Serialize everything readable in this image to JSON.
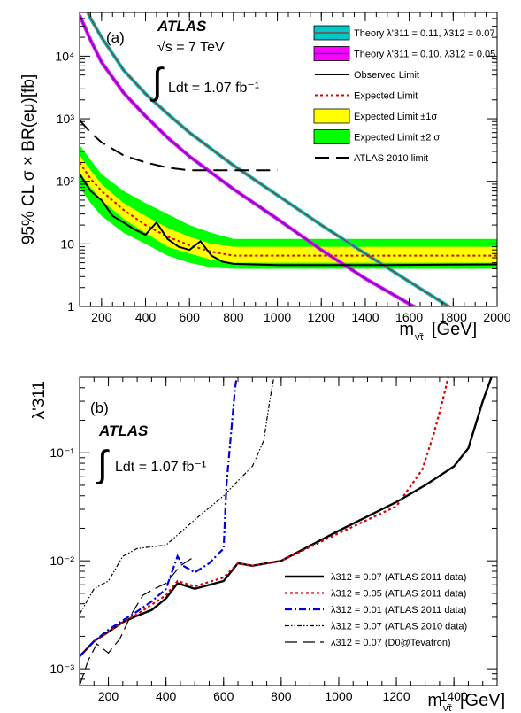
{
  "chart_data": [
    {
      "panel_label": "(a)",
      "type": "line",
      "experiment": "ATLAS",
      "energy_label": "√s = 7 TeV",
      "lumi_label": "Ldt = 1.07 fb⁻¹",
      "ylabel": "95% CL σ × BR(eμ)[fb]",
      "xlabel": "m",
      "xlabel_sub": "ν̃τ",
      "xlabel_unit": "[GeV]",
      "xlim": [
        100,
        2000
      ],
      "ylim": [
        1,
        50000
      ],
      "yscale": "log",
      "x_ticks": [
        200,
        400,
        600,
        800,
        1000,
        1200,
        1400,
        1600,
        1800,
        2000
      ],
      "y_ticks": [
        {
          "value": 1,
          "label": "1"
        },
        {
          "value": 10,
          "label": "10"
        },
        {
          "value": 100,
          "label": "10²"
        },
        {
          "value": 1000,
          "label": "10³"
        },
        {
          "value": 10000,
          "label": "10⁴"
        }
      ],
      "legend_position": "top-right",
      "series": [
        {
          "name": "Expected Limit ±2 σ",
          "kind": "band",
          "color": "#00ff00",
          "x": [
            100,
            150,
            200,
            300,
            400,
            500,
            600,
            700,
            800,
            1000,
            1200,
            1500,
            2000
          ],
          "low": [
            80,
            45,
            28,
            15,
            10,
            6.5,
            5,
            4.2,
            4,
            4,
            4,
            4,
            4
          ],
          "high": [
            380,
            220,
            130,
            70,
            45,
            30,
            20,
            15,
            12,
            12,
            12,
            12,
            12
          ]
        },
        {
          "name": "Expected Limit ±1σ",
          "kind": "band",
          "color": "#ffff00",
          "x": [
            100,
            150,
            200,
            300,
            400,
            500,
            600,
            700,
            800,
            1000,
            1200,
            1500,
            2000
          ],
          "low": [
            140,
            80,
            50,
            25,
            15,
            9,
            7,
            5.6,
            5,
            5,
            5,
            5,
            5
          ],
          "high": [
            260,
            150,
            90,
            45,
            28,
            18,
            13,
            10,
            9,
            9,
            9,
            9,
            9
          ]
        },
        {
          "name": "Theory λ'311 = 0.11, λ312 = 0.07",
          "kind": "line",
          "color": "#7b4a3a",
          "outline": "#00c8c8",
          "x": [
            100,
            150,
            200,
            300,
            400,
            500,
            600,
            800,
            1000,
            1200,
            1400,
            1600,
            1800
          ],
          "y": [
            100000,
            40000,
            20000,
            6000,
            2500,
            1200,
            600,
            180,
            60,
            20,
            7,
            2.5,
            0.9
          ]
        },
        {
          "name": "Theory λ'311 = 0.10, λ312 = 0.05",
          "kind": "line",
          "color": "#5a1fb0",
          "outline": "#ff00ff",
          "x": [
            100,
            150,
            200,
            300,
            400,
            500,
            600,
            800,
            1000,
            1200,
            1400,
            1600,
            1700
          ],
          "y": [
            45000,
            18000,
            8000,
            2600,
            1100,
            500,
            250,
            75,
            25,
            8,
            2.8,
            1.1,
            0.7
          ]
        },
        {
          "name": "ATLAS 2010 limit",
          "kind": "line",
          "color": "#000000",
          "dash": "16 8",
          "x": [
            100,
            150,
            200,
            300,
            400,
            500,
            600,
            700,
            800,
            1000
          ],
          "y": [
            950,
            600,
            420,
            260,
            200,
            165,
            150,
            150,
            150,
            150
          ]
        },
        {
          "name": "Expected Limit",
          "kind": "line",
          "color": "#dd0000",
          "dash": "3 3",
          "x": [
            100,
            150,
            200,
            300,
            400,
            500,
            600,
            700,
            800,
            1000,
            1200,
            1500,
            2000
          ],
          "y": [
            200,
            110,
            70,
            35,
            20,
            13,
            9.5,
            7.5,
            6.5,
            6.5,
            6.5,
            6.5,
            6.5
          ]
        },
        {
          "name": "Observed Limit",
          "kind": "line",
          "color": "#000000",
          "x": [
            100,
            150,
            200,
            250,
            300,
            350,
            400,
            450,
            500,
            550,
            600,
            650,
            700,
            750,
            800,
            1000,
            1200,
            1500,
            2000
          ],
          "y": [
            130,
            70,
            50,
            28,
            22,
            17,
            14,
            22,
            12,
            9,
            8,
            11,
            6.5,
            5.2,
            4.8,
            4.6,
            4.6,
            4.6,
            4.7
          ]
        }
      ]
    },
    {
      "panel_label": "(b)",
      "type": "line",
      "experiment": "ATLAS",
      "lumi_label": "Ldt = 1.07 fb⁻¹",
      "ylabel": "λ'311",
      "xlabel": "m",
      "xlabel_sub": "ν̃τ",
      "xlabel_unit": "[GeV]",
      "xlim": [
        100,
        1550
      ],
      "ylim": [
        0.0007,
        0.5
      ],
      "yscale": "log",
      "x_ticks": [
        200,
        400,
        600,
        800,
        1000,
        1200,
        1400
      ],
      "y_ticks": [
        {
          "value": 0.001,
          "label": "10⁻³"
        },
        {
          "value": 0.01,
          "label": "10⁻²"
        },
        {
          "value": 0.1,
          "label": "10⁻¹"
        }
      ],
      "legend_position": "bottom-right",
      "series": [
        {
          "name": "λ312 = 0.07 (ATLAS 2011 data)",
          "color": "#000000",
          "width": 2.4,
          "dash": "",
          "x": [
            100,
            150,
            200,
            250,
            300,
            350,
            400,
            440,
            500,
            600,
            650,
            700,
            800,
            1000,
            1200,
            1300,
            1400,
            1450,
            1500,
            1530
          ],
          "y": [
            0.0013,
            0.0018,
            0.0022,
            0.0027,
            0.0031,
            0.0035,
            0.0045,
            0.0062,
            0.0055,
            0.0065,
            0.0095,
            0.009,
            0.01,
            0.019,
            0.035,
            0.05,
            0.075,
            0.11,
            0.3,
            0.5
          ]
        },
        {
          "name": "λ312 = 0.05 (ATLAS 2011 data)",
          "color": "#dd0000",
          "width": 2.2,
          "dash": "3 3",
          "x": [
            100,
            150,
            200,
            250,
            300,
            400,
            440,
            500,
            600,
            650,
            700,
            800,
            1000,
            1200,
            1290,
            1330,
            1360,
            1380
          ],
          "y": [
            0.0013,
            0.0018,
            0.0022,
            0.0027,
            0.0032,
            0.0048,
            0.0065,
            0.0058,
            0.007,
            0.0095,
            0.009,
            0.01,
            0.018,
            0.032,
            0.07,
            0.15,
            0.3,
            0.5
          ]
        },
        {
          "name": "λ312 = 0.01 (ATLAS 2011 data)",
          "color": "#0000dd",
          "width": 2.2,
          "dash": "8 3 2 3",
          "x": [
            100,
            150,
            200,
            250,
            300,
            350,
            400,
            440,
            460,
            500,
            550,
            600,
            610,
            630,
            640,
            650
          ],
          "y": [
            0.0013,
            0.0018,
            0.0023,
            0.0028,
            0.0034,
            0.0042,
            0.0055,
            0.011,
            0.009,
            0.0078,
            0.0095,
            0.013,
            0.05,
            0.2,
            0.4,
            0.6
          ]
        },
        {
          "name": "λ312 = 0.07 (ATLAS 2010 data)",
          "color": "#000000",
          "width": 1.2,
          "dash": "5 2 1.5 2 1.5 2",
          "x": [
            100,
            150,
            200,
            250,
            300,
            400,
            500,
            550,
            600,
            650,
            700,
            740,
            760,
            780
          ],
          "y": [
            0.0032,
            0.0055,
            0.0065,
            0.011,
            0.013,
            0.014,
            0.024,
            0.031,
            0.04,
            0.055,
            0.075,
            0.13,
            0.3,
            0.6
          ]
        },
        {
          "name": "λ312 = 0.07 (D0@Tevatron)",
          "color": "#000000",
          "width": 1.2,
          "dash": "14 6",
          "x": [
            100,
            130,
            160,
            200,
            240,
            280,
            320,
            360,
            400,
            450,
            500
          ],
          "y": [
            0.0007,
            0.0012,
            0.0017,
            0.0014,
            0.0019,
            0.0032,
            0.0048,
            0.0055,
            0.0062,
            0.009,
            0.011
          ]
        }
      ]
    }
  ]
}
